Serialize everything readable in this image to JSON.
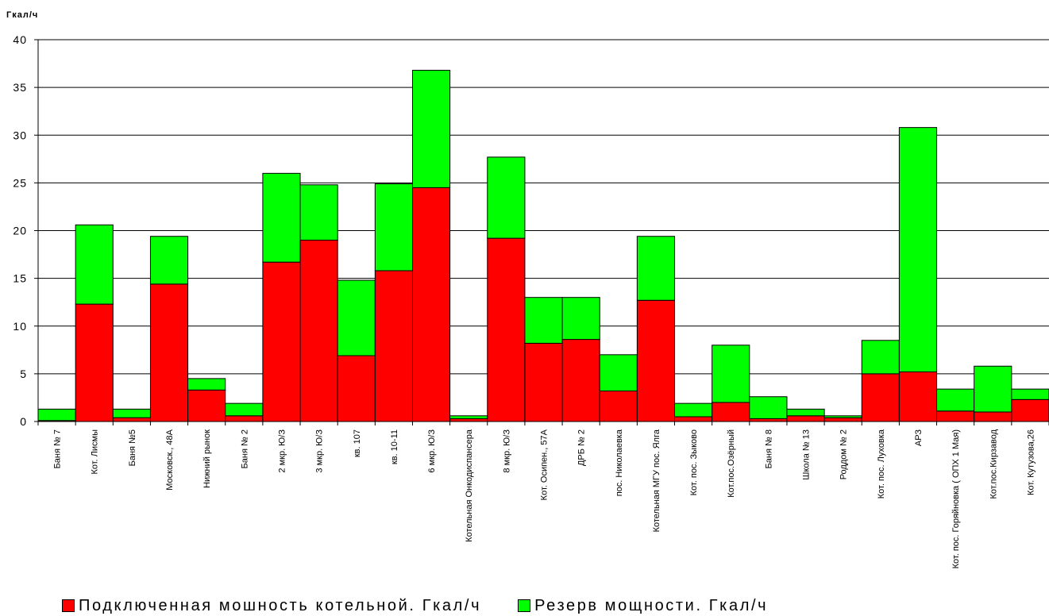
{
  "chart_data": {
    "type": "bar",
    "stacked": true,
    "title": "",
    "ylabel": "Гкал/ч",
    "xlabel": "",
    "ylim": [
      0,
      40
    ],
    "yticks": [
      0,
      5,
      10,
      15,
      20,
      25,
      30,
      35,
      40
    ],
    "grid": "horizontal",
    "legend_position": "bottom",
    "categories": [
      "Баня № 7",
      "Кот. Лисмы",
      "Баня №5",
      "Московск., 48А",
      "Нижний рынок",
      "Баня № 2",
      "2 мкр. Ю/З",
      "3 мкр. Ю/З",
      "кв. 107",
      "кв. 10-11",
      "6 мкр. Ю/З",
      "Котельная Онкодиспансера",
      "8 мкр. Ю/З",
      "Кот. Осипен., 57А",
      "ДРБ № 2",
      "пос. Николаевка",
      "Котельная МГУ пос. Ялга",
      "Кот. пос. Зыково",
      "Кот.пос.Озёрный",
      "Баня № 8",
      "Школа № 13",
      "Роддом № 2",
      "Кот. пос. Луховка",
      "АРЗ",
      "Кот. пос. Горяйновка ( ОПХ 1 Мая)",
      "Кот.пос.Кирзавод",
      "Кот. Кутузова,26"
    ],
    "series": [
      {
        "name": "Подключенная мошность котельной. Гкал/ч",
        "color": "#ff0000",
        "values": [
          0.1,
          12.3,
          0.4,
          14.4,
          3.3,
          0.6,
          16.7,
          19.0,
          6.9,
          15.8,
          24.5,
          0.3,
          19.2,
          8.2,
          8.6,
          3.2,
          12.7,
          0.5,
          2.0,
          0.3,
          0.6,
          0.4,
          5.0,
          5.2,
          1.1,
          1.0,
          2.3
        ]
      },
      {
        "name": "Резерв мощности. Гкал/ч",
        "color": "#00ff00",
        "values": [
          1.2,
          8.3,
          0.9,
          5.0,
          1.2,
          1.3,
          9.3,
          5.8,
          7.9,
          9.1,
          12.3,
          0.3,
          8.5,
          4.8,
          4.4,
          3.8,
          6.7,
          1.4,
          6.0,
          2.3,
          0.7,
          0.2,
          3.5,
          25.6,
          2.3,
          4.8,
          1.1
        ]
      }
    ]
  }
}
